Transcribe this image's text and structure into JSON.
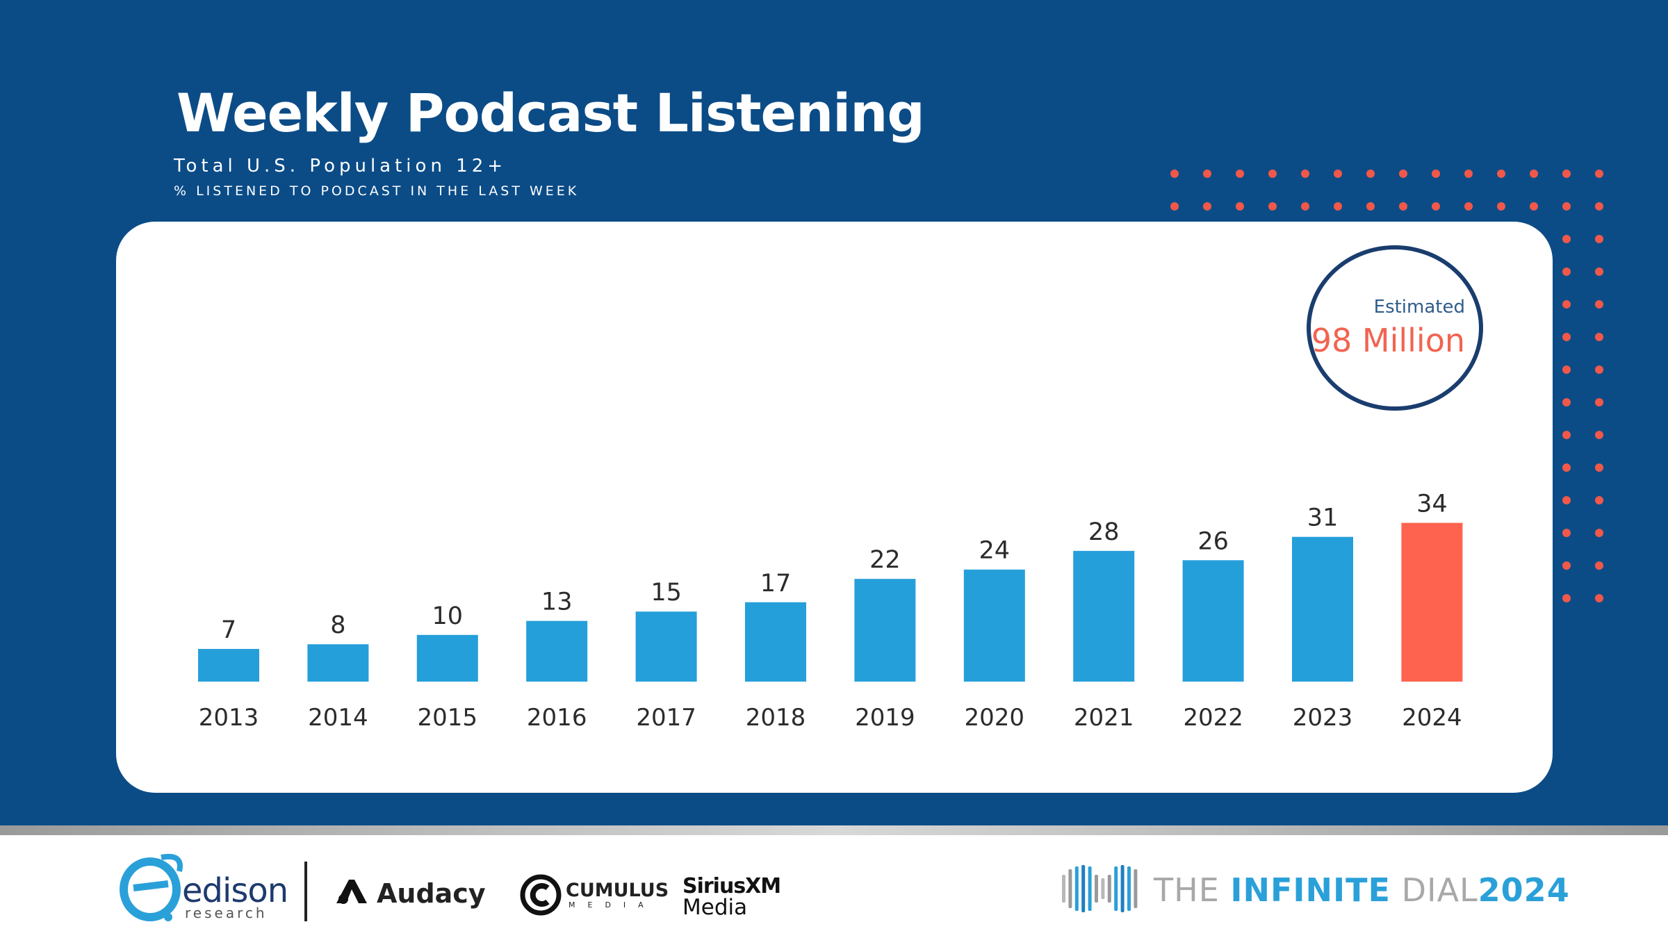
{
  "header": {
    "title": "Weekly Podcast Listening",
    "subtitle": "Total U.S. Population 12+",
    "measure": "% LISTENED TO PODCAST IN THE LAST WEEK"
  },
  "colors": {
    "background": "#0b4c87",
    "bar": "#259fda",
    "highlight_bar": "#fe634f",
    "dots": "#f1584a",
    "card": "#ffffff"
  },
  "badge": {
    "top_text": "Estimated",
    "main_text": "98 Million"
  },
  "chart_data": {
    "type": "bar",
    "categories": [
      "2013",
      "2014",
      "2015",
      "2016",
      "2017",
      "2018",
      "2019",
      "2020",
      "2021",
      "2022",
      "2023",
      "2024"
    ],
    "values": [
      7,
      8,
      10,
      13,
      15,
      17,
      22,
      24,
      28,
      26,
      31,
      34
    ],
    "highlight_category": "2024",
    "title": "Weekly Podcast Listening",
    "subtitle": "Total U.S. Population 12+",
    "ylabel": "% LISTENED TO PODCAST IN THE LAST WEEK",
    "xlabel": "",
    "ylim": [
      0,
      34
    ],
    "grid": false,
    "legend": "none",
    "data_labels": true
  },
  "footer": {
    "logos": {
      "edison": "edison",
      "edison_sub": "research",
      "audacy": "Audacy",
      "cumulus": "CUMULUS",
      "cumulus_sub": "MEDIA",
      "sirius": "SiriusXM",
      "sirius_sub": "Media",
      "infinite_dial_the": "THE ",
      "infinite_dial_infinite": "INFINITE",
      "infinite_dial_dial": " DIAL",
      "infinite_dial_year": "2024"
    }
  }
}
